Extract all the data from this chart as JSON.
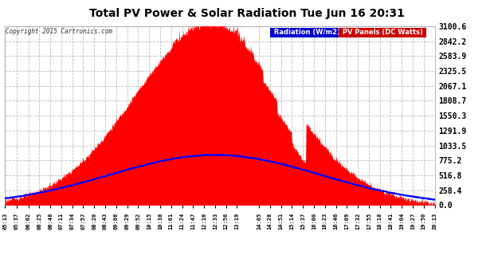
{
  "title": "Total PV Power & Solar Radiation Tue Jun 16 20:31",
  "copyright": "Copyright 2015 Cartronics.com",
  "background_color": "#ffffff",
  "plot_bg_color": "#ffffff",
  "grid_color": "#bbbbbb",
  "pv_fill_color": "#ff0000",
  "radiation_line_color": "#0000ff",
  "ylabel_right": [
    "3100.6",
    "2842.2",
    "2583.9",
    "2325.5",
    "2067.1",
    "1808.7",
    "1550.3",
    "1291.9",
    "1033.5",
    "775.2",
    "516.8",
    "258.4",
    "0.0"
  ],
  "ymax": 3100.6,
  "ymin": 0.0,
  "legend_radiation_bg": "#0000cc",
  "legend_pv_bg": "#cc0000",
  "legend_radiation_text": "Radiation (W/m2)",
  "legend_pv_text": "PV Panels (DC Watts)",
  "x_labels": [
    "05:13",
    "05:37",
    "06:02",
    "06:25",
    "06:48",
    "07:11",
    "07:34",
    "07:57",
    "08:20",
    "08:43",
    "09:06",
    "09:29",
    "09:52",
    "10:15",
    "10:38",
    "11:01",
    "11:24",
    "11:47",
    "12:10",
    "12:33",
    "12:56",
    "13:19",
    "14:05",
    "14:28",
    "14:51",
    "15:14",
    "15:37",
    "16:00",
    "16:23",
    "16:46",
    "17:09",
    "17:32",
    "17:55",
    "18:18",
    "18:41",
    "19:04",
    "19:27",
    "19:50",
    "20:13"
  ]
}
